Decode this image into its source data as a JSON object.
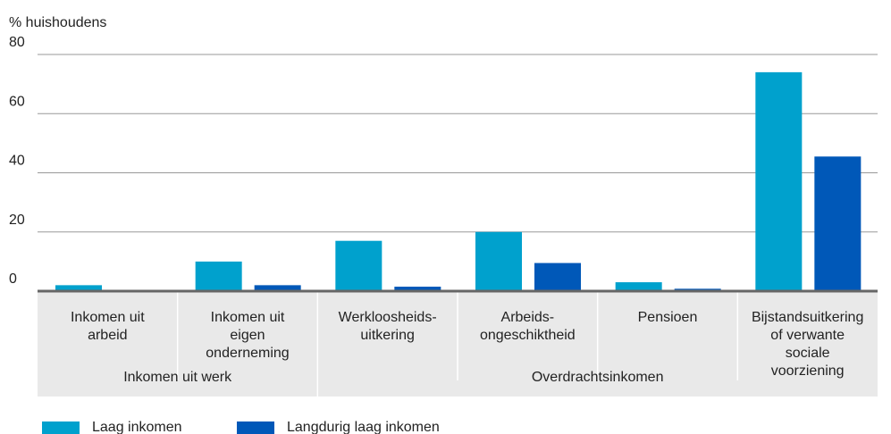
{
  "chart_data": {
    "type": "bar",
    "y_label": "% huishoudens",
    "categories": [
      "Inkomen uit\narbeid",
      "Inkomen uit\neigen\nonderneming",
      "Werkloosheids-\nuitkering",
      "Arbeids-\nongeschiktheid",
      "Pensioen",
      "Bijstandsuitkering\nof verwante\nsociale\nvoorziening"
    ],
    "groups": [
      {
        "label": "Inkomen uit werk",
        "span": [
          0,
          1
        ]
      },
      {
        "label": "Overdrachtsinkomen",
        "span": [
          2,
          5
        ]
      }
    ],
    "series": [
      {
        "name": "Laag inkomen",
        "color": "#00a1cd",
        "values": [
          2,
          10,
          17,
          20,
          3,
          74
        ]
      },
      {
        "name": "Langdurig laag inkomen",
        "color": "#0058b8",
        "values": [
          0,
          2,
          1.5,
          9.5,
          0.8,
          45.5
        ]
      }
    ],
    "ylim": [
      0,
      80
    ],
    "yticks": [
      0,
      20,
      40,
      60,
      80
    ],
    "grid": true,
    "legend": "bottom"
  }
}
